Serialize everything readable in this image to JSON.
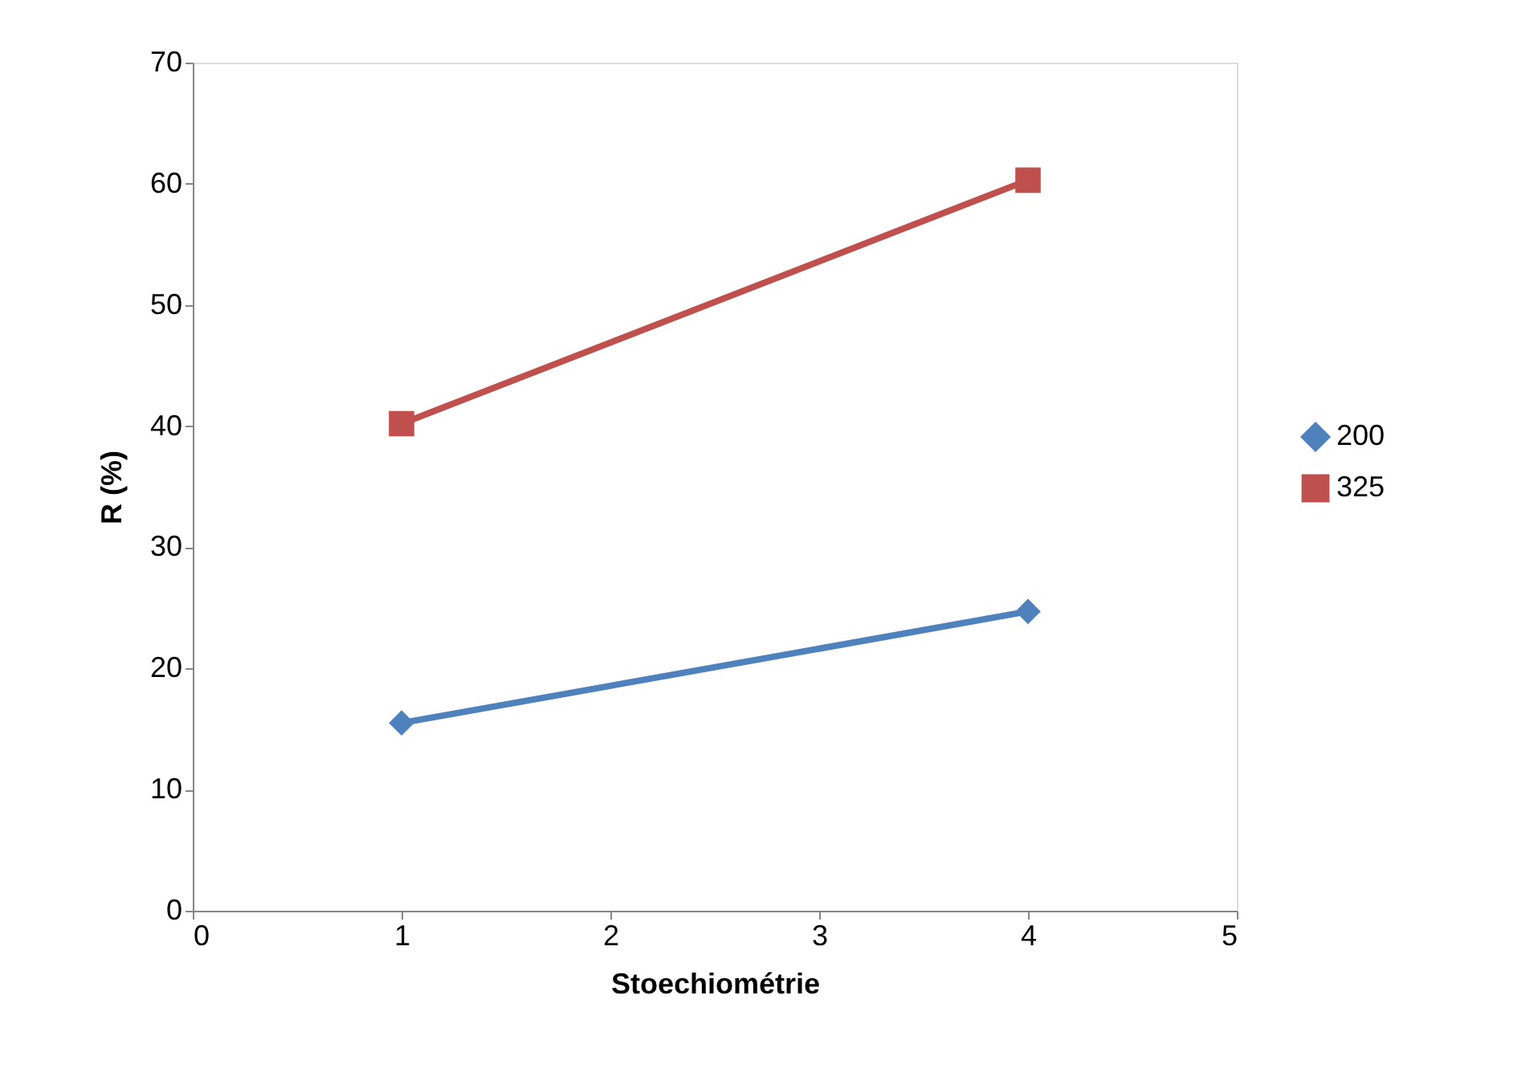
{
  "chart_data": {
    "type": "line",
    "xlabel": "Stoechiométrie",
    "ylabel": "R (%)",
    "x": [
      1,
      4
    ],
    "series": [
      {
        "name": "200",
        "color": "#4f81bd",
        "marker": "diamond",
        "values": [
          15.5,
          24.7
        ]
      },
      {
        "name": "325",
        "color": "#c0504d",
        "marker": "square",
        "values": [
          40.2,
          60.3
        ]
      }
    ],
    "xlim": [
      0,
      5
    ],
    "xticks": [
      0,
      1,
      2,
      3,
      4,
      5
    ],
    "ylim": [
      0,
      70
    ],
    "yticks": [
      0,
      10,
      20,
      30,
      40,
      50,
      60,
      70
    ],
    "grid": false,
    "legend": "right",
    "line_style": "solid"
  }
}
